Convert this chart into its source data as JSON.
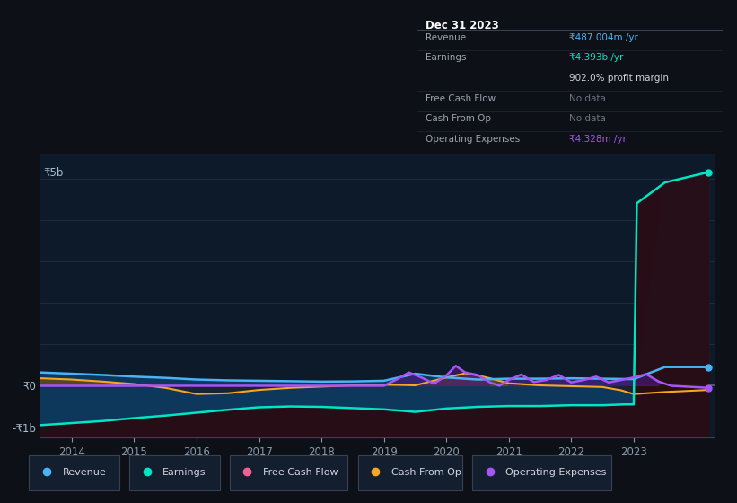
{
  "background_color": "#0d1117",
  "plot_bg_color": "#0d1a2a",
  "grid_color": "#253545",
  "zero_line_color": "#5a6a7a",
  "ylim": [
    -1250000000.0,
    5600000000.0
  ],
  "xlim": [
    2013.5,
    2024.3
  ],
  "ytick_labels": [
    "-₹1b",
    "₹0",
    "₹5b"
  ],
  "ytick_vals": [
    -1000000000.0,
    0,
    5000000000.0
  ],
  "xtick_labels": [
    "2014",
    "2015",
    "2016",
    "2017",
    "2018",
    "2019",
    "2020",
    "2021",
    "2022",
    "2023"
  ],
  "xtick_positions": [
    2014,
    2015,
    2016,
    2017,
    2018,
    2019,
    2020,
    2021,
    2022,
    2023
  ],
  "legend_items": [
    {
      "label": "Revenue",
      "color": "#4ab3f4"
    },
    {
      "label": "Earnings",
      "color": "#00e5c3"
    },
    {
      "label": "Free Cash Flow",
      "color": "#f06292"
    },
    {
      "label": "Cash From Op",
      "color": "#f5a623"
    },
    {
      "label": "Operating Expenses",
      "color": "#a855f7"
    }
  ],
  "tooltip_title": "Dec 31 2023",
  "tooltip_rows": [
    {
      "label": "Revenue",
      "value": "₹487.004m /yr",
      "vcolor": "#4ab3f4",
      "sep": true
    },
    {
      "label": "Earnings",
      "value": "₹4.393b /yr",
      "vcolor": "#00e5c3",
      "sep": false
    },
    {
      "label": "",
      "value": "902.0% profit margin",
      "vcolor": "#d1d5db",
      "sep": true
    },
    {
      "label": "Free Cash Flow",
      "value": "No data",
      "vcolor": "#6b7280",
      "sep": true
    },
    {
      "label": "Cash From Op",
      "value": "No data",
      "vcolor": "#6b7280",
      "sep": true
    },
    {
      "label": "Operating Expenses",
      "value": "₹4.328m /yr",
      "vcolor": "#a855f7",
      "sep": false
    }
  ],
  "revenue_x": [
    2013.5,
    2014.0,
    2014.5,
    2015.0,
    2015.5,
    2016.0,
    2016.5,
    2017.0,
    2017.5,
    2018.0,
    2018.5,
    2019.0,
    2019.5,
    2020.0,
    2020.5,
    2021.0,
    2021.5,
    2022.0,
    2022.5,
    2023.0,
    2023.5,
    2024.2
  ],
  "revenue_y": [
    320000000.0,
    290000000.0,
    260000000.0,
    220000000.0,
    190000000.0,
    150000000.0,
    130000000.0,
    120000000.0,
    110000000.0,
    100000000.0,
    105000000.0,
    120000000.0,
    290000000.0,
    200000000.0,
    150000000.0,
    170000000.0,
    170000000.0,
    180000000.0,
    170000000.0,
    160000000.0,
    450000000.0,
    450000000.0
  ],
  "earnings_x": [
    2013.5,
    2014.0,
    2014.5,
    2015.0,
    2015.5,
    2016.0,
    2016.5,
    2017.0,
    2017.5,
    2018.0,
    2018.5,
    2019.0,
    2019.5,
    2020.0,
    2020.5,
    2021.0,
    2021.5,
    2022.0,
    2022.5,
    2022.85,
    2023.0,
    2023.05,
    2023.5,
    2024.2
  ],
  "earnings_y": [
    -950000000.0,
    -900000000.0,
    -850000000.0,
    -780000000.0,
    -720000000.0,
    -650000000.0,
    -580000000.0,
    -520000000.0,
    -500000000.0,
    -510000000.0,
    -540000000.0,
    -570000000.0,
    -630000000.0,
    -550000000.0,
    -510000000.0,
    -490000000.0,
    -490000000.0,
    -470000000.0,
    -470000000.0,
    -450000000.0,
    -450000000.0,
    4400000000.0,
    4900000000.0,
    5150000000.0
  ],
  "cashop_x": [
    2013.5,
    2014.0,
    2014.5,
    2015.0,
    2015.5,
    2016.0,
    2016.5,
    2017.0,
    2017.5,
    2018.0,
    2018.5,
    2019.0,
    2019.5,
    2020.0,
    2020.3,
    2020.5,
    2020.7,
    2021.0,
    2021.5,
    2022.0,
    2022.5,
    2022.8,
    2023.0,
    2023.5,
    2024.2
  ],
  "cashop_y": [
    180000000.0,
    150000000.0,
    100000000.0,
    40000000.0,
    -50000000.0,
    -200000000.0,
    -180000000.0,
    -100000000.0,
    -50000000.0,
    -20000000.0,
    10000000.0,
    30000000.0,
    10000000.0,
    200000000.0,
    300000000.0,
    250000000.0,
    180000000.0,
    60000000.0,
    10000000.0,
    -10000000.0,
    -30000000.0,
    -110000000.0,
    -200000000.0,
    -150000000.0,
    -100000000.0
  ],
  "opex_x": [
    2013.5,
    2014.0,
    2015.0,
    2016.0,
    2017.0,
    2018.0,
    2018.8,
    2019.0,
    2019.2,
    2019.4,
    2019.6,
    2019.8,
    2020.0,
    2020.15,
    2020.3,
    2020.5,
    2020.7,
    2020.85,
    2021.0,
    2021.2,
    2021.4,
    2021.6,
    2021.8,
    2022.0,
    2022.2,
    2022.4,
    2022.6,
    2022.8,
    2023.0,
    2023.2,
    2023.4,
    2023.6,
    2024.2
  ],
  "opex_y": [
    0,
    0,
    0,
    0,
    0,
    0,
    0,
    0,
    150000000.0,
    320000000.0,
    200000000.0,
    50000000.0,
    250000000.0,
    480000000.0,
    320000000.0,
    260000000.0,
    80000000.0,
    0,
    140000000.0,
    270000000.0,
    90000000.0,
    140000000.0,
    260000000.0,
    80000000.0,
    140000000.0,
    220000000.0,
    80000000.0,
    140000000.0,
    200000000.0,
    280000000.0,
    100000000.0,
    0,
    -50000000.0
  ]
}
